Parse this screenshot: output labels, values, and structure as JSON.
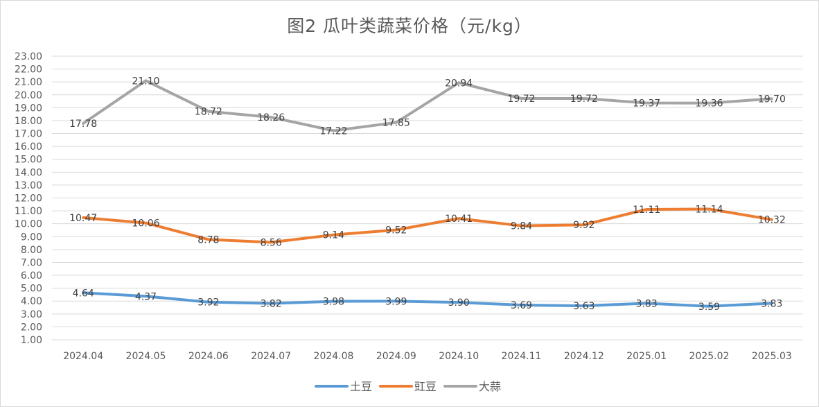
{
  "chart_data": {
    "type": "line",
    "title": "图2  瓜叶类蔬菜价格（元/kg）",
    "categories": [
      "2024.04",
      "2024.05",
      "2024.06",
      "2024.07",
      "2024.08",
      "2024.09",
      "2024.10",
      "2024.11",
      "2024.12",
      "2025.01",
      "2025.02",
      "2025.03"
    ],
    "ylim": [
      1.0,
      23.0
    ],
    "ytick_labels": [
      "1.00",
      "2.00",
      "3.00",
      "4.00",
      "5.00",
      "6.00",
      "7.00",
      "8.00",
      "9.00",
      "10.00",
      "11.00",
      "12.00",
      "13.00",
      "14.00",
      "15.00",
      "16.00",
      "17.00",
      "18.00",
      "19.00",
      "20.00",
      "21.00",
      "22.00",
      "23.00"
    ],
    "grid": true,
    "legend_position": "bottom",
    "series": [
      {
        "name": "土豆",
        "color": "#5b9bd5",
        "values": [
          4.64,
          4.37,
          3.92,
          3.82,
          3.98,
          3.99,
          3.9,
          3.69,
          3.63,
          3.83,
          3.59,
          3.83
        ],
        "labels": [
          "4.64",
          "4.37",
          "3.92",
          "3.82",
          "3.98",
          "3.99",
          "3.90",
          "3.69",
          "3.63",
          "3.83",
          "3.59",
          "3.83"
        ]
      },
      {
        "name": "豇豆",
        "color": "#ed7d31",
        "values": [
          10.47,
          10.06,
          8.78,
          8.56,
          9.14,
          9.52,
          10.41,
          9.84,
          9.92,
          11.11,
          11.14,
          10.32
        ],
        "labels": [
          "10.47",
          "10.06",
          "8.78",
          "8.56",
          "9.14",
          "9.52",
          "10.41",
          "9.84",
          "9.92",
          "11.11",
          "11.14",
          "10.32"
        ]
      },
      {
        "name": "大蒜",
        "color": "#a5a5a5",
        "values": [
          17.78,
          21.1,
          18.72,
          18.26,
          17.22,
          17.85,
          20.94,
          19.72,
          19.72,
          19.37,
          19.36,
          19.7
        ],
        "labels": [
          "17.78",
          "21.10",
          "18.72",
          "18.26",
          "17.22",
          "17.85",
          "20.94",
          "19.72",
          "19.72",
          "19.37",
          "19.36",
          "19.70"
        ]
      }
    ]
  }
}
